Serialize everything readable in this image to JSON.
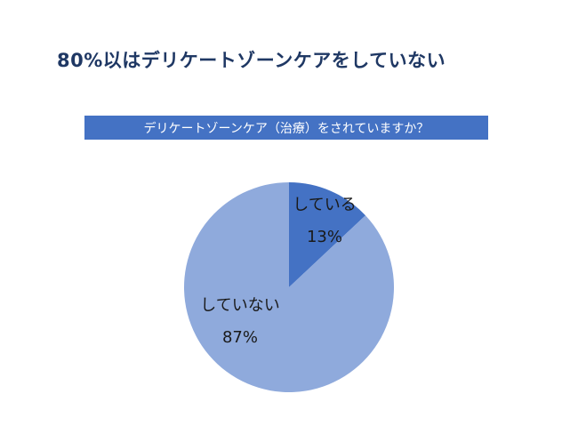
{
  "page": {
    "title": "80%以はデリケートゾーンケアをしていない",
    "banner": "デリケートゾーンケア（治療）をされていますか？"
  },
  "chart_data": {
    "type": "pie",
    "title": "デリケートゾーンケア（治療）をされていますか？",
    "categories": [
      "している",
      "していない"
    ],
    "values": [
      13,
      87
    ],
    "colors": [
      "#4472C4",
      "#8FAADC"
    ],
    "start_angle_deg": -90,
    "direction": "clockwise",
    "legend_position": "none",
    "labels": [
      {
        "name": "している",
        "value": "13%"
      },
      {
        "name": "していない",
        "value": "87%"
      }
    ],
    "title_bar_color": "#4472C4",
    "heading_color": "#1F3864"
  }
}
